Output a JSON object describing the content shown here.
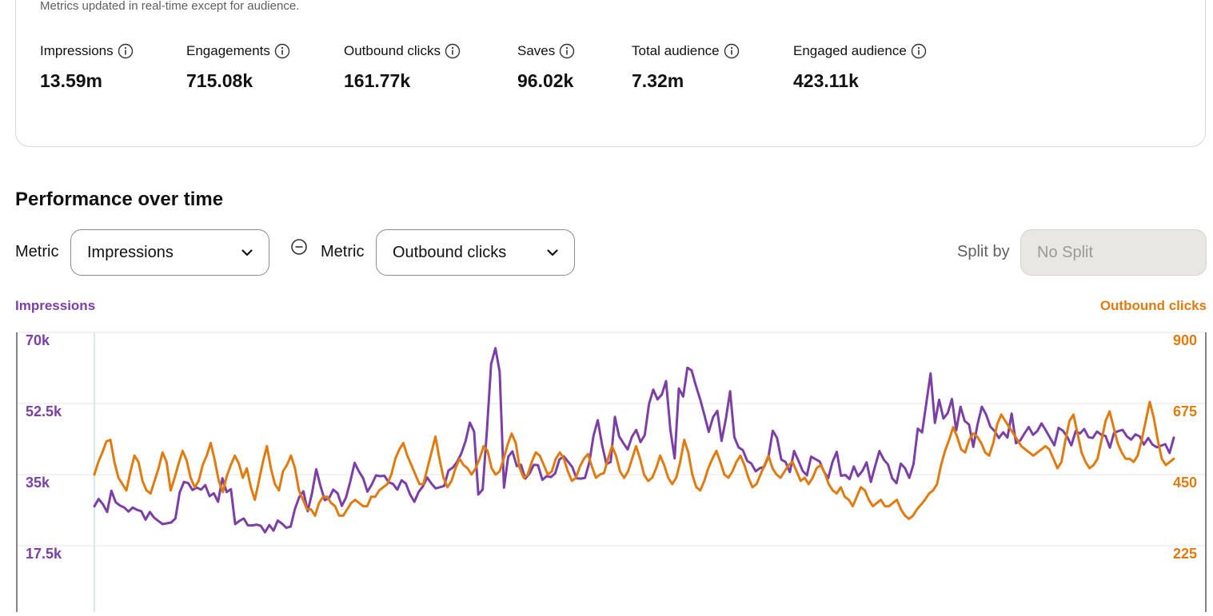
{
  "summary": {
    "subtitle": "Metrics updated in real-time except for audience.",
    "metrics": [
      {
        "label": "Impressions",
        "value": "13.59m"
      },
      {
        "label": "Engagements",
        "value": "715.08k"
      },
      {
        "label": "Outbound clicks",
        "value": "161.77k"
      },
      {
        "label": "Saves",
        "value": "96.02k"
      },
      {
        "label": "Total audience",
        "value": "7.32m"
      },
      {
        "label": "Engaged audience",
        "value": "423.11k"
      }
    ],
    "info_icon": "info-circle-icon"
  },
  "performance": {
    "title": "Performance over time",
    "metric1_label": "Metric",
    "metric1_value": "Impressions",
    "metric2_label": "Metric",
    "metric2_value": "Outbound clicks",
    "remove_icon": "minus-circle-icon",
    "dropdown_icon": "chevron-down-icon",
    "split_label": "Split by",
    "split_value": "No Split"
  },
  "colors": {
    "impressions": "#7b3fa6",
    "outbound_clicks": "#e07b0f"
  },
  "chart_data": {
    "type": "line",
    "legend_left": "Impressions",
    "legend_right": "Outbound clicks",
    "y_left_ticks": [
      "70k",
      "52.5k",
      "35k",
      "17.5k"
    ],
    "y_right_ticks": [
      "900",
      "675",
      "450",
      "225"
    ],
    "y_left_range": [
      0,
      70000
    ],
    "y_right_range": [
      0,
      900
    ],
    "series": [
      {
        "name": "Impressions",
        "axis": "left",
        "color": "#7b3fa6",
        "values": [
          27200,
          29000,
          27700,
          25800,
          31000,
          28200,
          27400,
          26900,
          25900,
          26900,
          26300,
          26000,
          23900,
          25800,
          24400,
          23600,
          22800,
          23000,
          23200,
          24200,
          30600,
          33200,
          32900,
          31200,
          31800,
          31300,
          32400,
          29700,
          30400,
          28300,
          34100,
          30700,
          31400,
          22800,
          23600,
          24200,
          22500,
          22500,
          22700,
          22400,
          20800,
          22600,
          21200,
          23700,
          22900,
          21900,
          22200,
          26500,
          29400,
          30900,
          26000,
          30300,
          36300,
          32200,
          28700,
          29200,
          31300,
          30400,
          27300,
          29400,
          33400,
          37900,
          35800,
          34100,
          30800,
          32500,
          34800,
          34600,
          34700,
          33100,
          32700,
          31300,
          33600,
          32800,
          30100,
          28300,
          30700,
          32100,
          34300,
          32800,
          31600,
          31900,
          32200,
          36000,
          36700,
          38100,
          40200,
          43200,
          47800,
          45600,
          30100,
          31300,
          45700,
          62200,
          66100,
          60300,
          31800,
          39400,
          40700,
          37100,
          37400,
          34000,
          35300,
          37400,
          37300,
          33700,
          34600,
          34400,
          35300,
          38700,
          39500,
          38200,
          36900,
          34100,
          34000,
          34200,
          38000,
          44600,
          48400,
          42300,
          37600,
          38100,
          49200,
          44400,
          42700,
          41200,
          44300,
          46000,
          43000,
          44700,
          52400,
          55900,
          53500,
          54700,
          58000,
          46000,
          39000,
          56200,
          54200,
          61300,
          60600,
          56800,
          53500,
          49600,
          45500,
          49100,
          50700,
          43300,
          48600,
          55500,
          44200,
          41700,
          41000,
          38400,
          37700,
          35800,
          36600,
          36900,
          39400,
          45800,
          44000,
          38700,
          38100,
          35600,
          40800,
          38500,
          35900,
          34800,
          39400,
          38800,
          38200,
          35700,
          34100,
          38100,
          40600,
          34700,
          34900,
          33900,
          37000,
          34600,
          35900,
          38000,
          33200,
          37100,
          40800,
          38700,
          37500,
          34100,
          32900,
          37700,
          36600,
          34200,
          37600,
          46300,
          45400,
          52600,
          59900,
          47700,
          53400,
          48800,
          50100,
          53600,
          45900,
          51700,
          48200,
          47300,
          41800,
          47300,
          51700,
          49800,
          46800,
          45700,
          44000,
          45400,
          44100,
          50000,
          42700,
          43400,
          45100,
          46700,
          44800,
          45700,
          47600,
          45900,
          44000,
          42200,
          46500,
          45800,
          44300,
          42200,
          45700,
          45100,
          46200,
          44200,
          44000,
          45600,
          44800,
          44500,
          41600,
          45300,
          45700,
          46000,
          44400,
          43600,
          44900,
          44400,
          42400,
          44000,
          42400,
          41700,
          42100,
          42500,
          40300,
          44100
        ]
      },
      {
        "name": "Outbound clicks",
        "axis": "right",
        "color": "#e07b0f",
        "values": [
          450,
          490,
          520,
          555,
          560,
          490,
          440,
          420,
          400,
          460,
          510,
          490,
          430,
          400,
          390,
          430,
          470,
          520,
          490,
          400,
          440,
          485,
          525,
          495,
          440,
          410,
          430,
          480,
          510,
          550,
          495,
          430,
          395,
          445,
          480,
          510,
          485,
          440,
          470,
          410,
          370,
          430,
          490,
          540,
          470,
          420,
          400,
          460,
          480,
          510,
          470,
          400,
          370,
          340,
          340,
          320,
          360,
          380,
          380,
          360,
          350,
          320,
          320,
          340,
          360,
          370,
          360,
          350,
          350,
          380,
          380,
          400,
          410,
          420,
          450,
          500,
          530,
          550,
          510,
          480,
          450,
          420,
          420,
          470,
          520,
          570,
          500,
          440,
          410,
          430,
          470,
          500,
          480,
          470,
          450,
          470,
          500,
          540,
          525,
          470,
          450,
          460,
          500,
          545,
          580,
          550,
          470,
          440,
          450,
          490,
          520,
          510,
          480,
          450,
          460,
          500,
          520,
          500,
          460,
          430,
          440,
          475,
          500,
          515,
          475,
          440,
          450,
          455,
          500,
          540,
          510,
          460,
          440,
          460,
          500,
          540,
          500,
          450,
          430,
          440,
          470,
          510,
          480,
          440,
          420,
          440,
          490,
          560,
          520,
          450,
          410,
          400,
          430,
          470,
          500,
          525,
          490,
          450,
          440,
          460,
          490,
          510,
          480,
          440,
          410,
          420,
          450,
          480,
          510,
          470,
          450,
          440,
          460,
          480,
          490,
          460,
          430,
          440,
          420,
          440,
          470,
          480,
          455,
          420,
          400,
          390,
          410,
          380,
          370,
          350,
          380,
          410,
          400,
          370,
          350,
          360,
          370,
          350,
          350,
          360,
          370,
          340,
          320,
          310,
          320,
          340,
          355,
          370,
          390,
          400,
          420,
          480,
          525,
          560,
          600,
          570,
          530,
          520,
          560,
          580,
          570,
          550,
          520,
          510,
          550,
          610,
          640,
          620,
          600,
          580,
          560,
          540,
          530,
          520,
          510,
          520,
          530,
          540,
          530,
          500,
          470,
          490,
          560,
          620,
          640,
          580,
          520,
          490,
          470,
          480,
          500,
          560,
          620,
          650,
          600,
          550,
          520,
          500,
          500,
          490,
          510,
          560,
          620,
          680,
          630,
          560,
          500,
          480,
          490,
          500
        ]
      }
    ]
  }
}
